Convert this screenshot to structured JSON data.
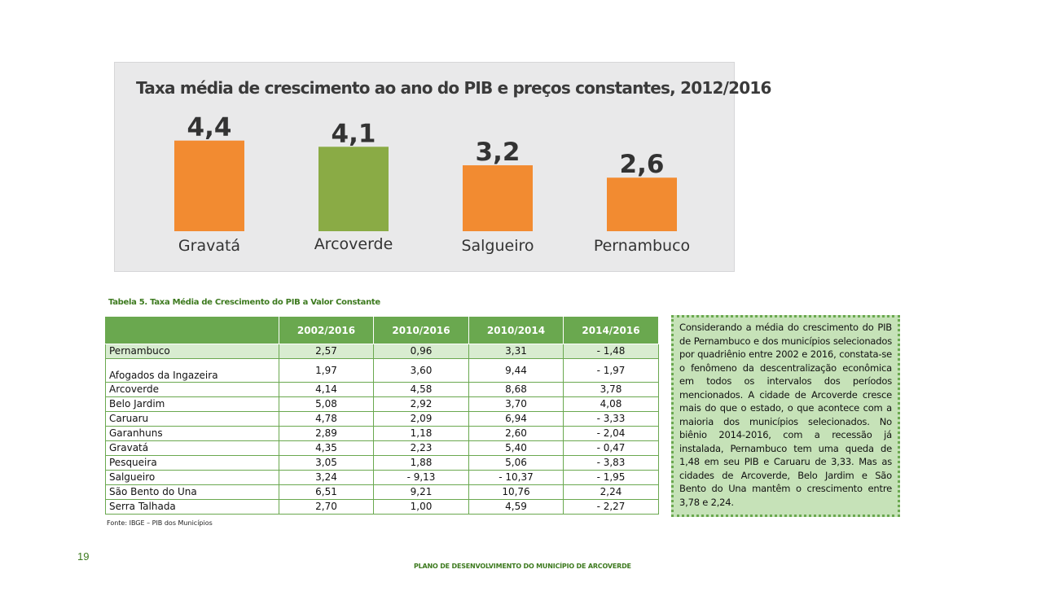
{
  "chart_data": {
    "type": "bar",
    "title": "Taxa média de crescimento ao ano do PIB e preços constantes, 2012/2016",
    "categories": [
      "Gravatá",
      "Arcoverde",
      "Salgueiro",
      "Pernambuco"
    ],
    "values": [
      4.4,
      4.1,
      3.2,
      2.6
    ],
    "value_labels": [
      "4,4",
      "4,1",
      "3,2",
      "2,6"
    ],
    "colors": [
      "#f28b31",
      "#8aab45",
      "#f28b31",
      "#f28b31"
    ]
  },
  "table": {
    "caption": "Tabela 5. Taxa Média de Crescimento do PIB a Valor Constante",
    "headers": [
      "",
      "2002/2016",
      "2010/2016",
      "2010/2014",
      "2014/2016"
    ],
    "rows": [
      [
        "Pernambuco",
        "2,57",
        "0,96",
        "3,31",
        "- 1,48"
      ],
      [
        "Afogados da Ingazeira",
        "1,97",
        "3,60",
        "9,44",
        "- 1,97"
      ],
      [
        "Arcoverde",
        "4,14",
        "4,58",
        "8,68",
        "3,78"
      ],
      [
        "Belo Jardim",
        "5,08",
        "2,92",
        "3,70",
        "4,08"
      ],
      [
        "Caruaru",
        "4,78",
        "2,09",
        "6,94",
        "- 3,33"
      ],
      [
        "Garanhuns",
        "2,89",
        "1,18",
        "2,60",
        "- 2,04"
      ],
      [
        "Gravatá",
        "4,35",
        "2,23",
        "5,40",
        "- 0,47"
      ],
      [
        "Pesqueira",
        "3,05",
        "1,88",
        "5,06",
        "- 3,83"
      ],
      [
        "Salgueiro",
        "3,24",
        "- 9,13",
        "- 10,37",
        "- 1,95"
      ],
      [
        "São Bento do Una",
        "6,51",
        "9,21",
        "10,76",
        "2,24"
      ],
      [
        "Serra Talhada",
        "2,70",
        "1,00",
        "4,59",
        "- 2,27"
      ]
    ],
    "source": "Fonte: IBGE – PIB dos Municípios"
  },
  "note": "Considerando a média do crescimento do PIB de Pernambuco e dos municípios selecionados por quadriênio entre 2002 e 2016, constata-se o fenômeno da descentralização econômica em todos os intervalos dos períodos mencionados. A cidade de Arcoverde cresce mais do que o estado, o que acontece com a maioria dos municípios selecionados. No biênio 2014-2016, com a recessão já instalada, Pernambuco tem uma queda de 1,48 em seu PIB e Caruaru de 3,33. Mas as cidades de Arcoverde, Belo Jardim e São Bento do Una mantêm o crescimento entre 3,78 e 2,24.",
  "page_number": "19",
  "footer": "PLANO DE DESENVOLVIMENTO DO MUNICÍPIO DE ARCOVERDE"
}
